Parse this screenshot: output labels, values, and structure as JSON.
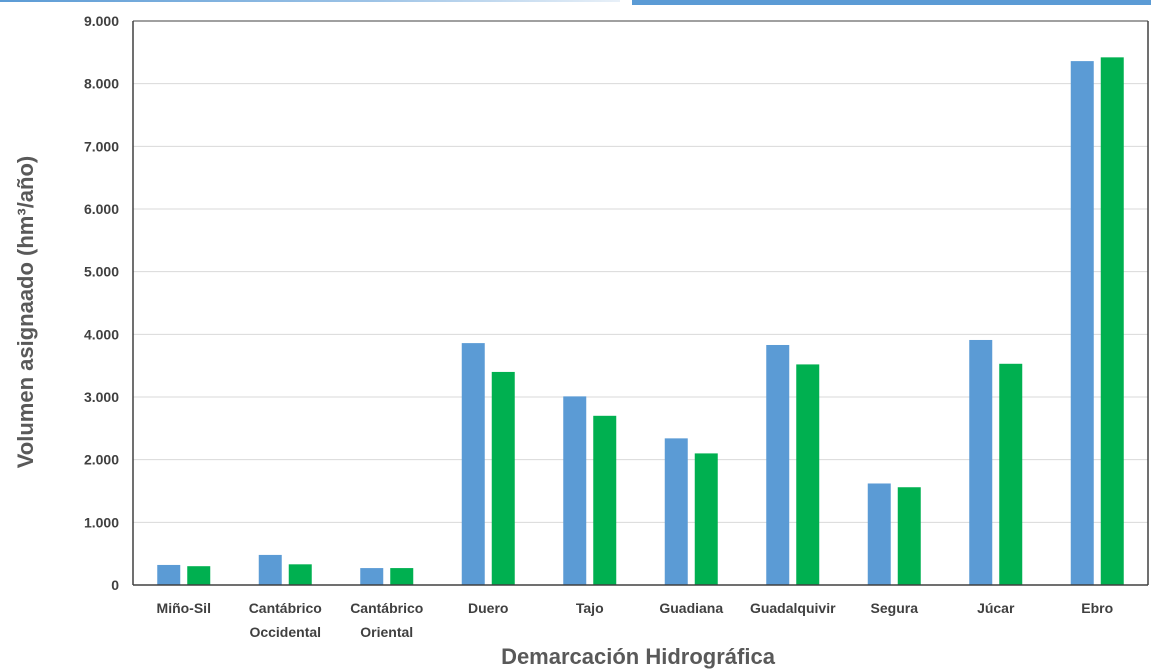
{
  "chart_data": {
    "type": "bar",
    "categories": [
      [
        "Miño-Sil"
      ],
      [
        "Cantábrico",
        "Occidental"
      ],
      [
        "Cantábrico",
        "Oriental"
      ],
      [
        "Duero"
      ],
      [
        "Tajo"
      ],
      [
        "Guadiana"
      ],
      [
        "Guadalquivir"
      ],
      [
        "Segura"
      ],
      [
        "Júcar"
      ],
      [
        "Ebro"
      ]
    ],
    "series": [
      {
        "values": [
          320,
          480,
          270,
          3860,
          3010,
          2340,
          3830,
          1620,
          3910,
          8360
        ],
        "color": "#5b9bd5"
      },
      {
        "values": [
          300,
          330,
          270,
          3400,
          2700,
          2100,
          3520,
          1560,
          3530,
          8420
        ],
        "color": "#00b050"
      }
    ],
    "yticks": [
      "0",
      "1.000",
      "2.000",
      "3.000",
      "4.000",
      "5.000",
      "6.000",
      "7.000",
      "8.000",
      "9.000"
    ],
    "ylim": [
      0,
      9000
    ],
    "xlabel": "Demarcación Hidrográfica",
    "ylabel": "Volumen asignaado (hm³/año)",
    "grid": true,
    "legend": "none"
  }
}
